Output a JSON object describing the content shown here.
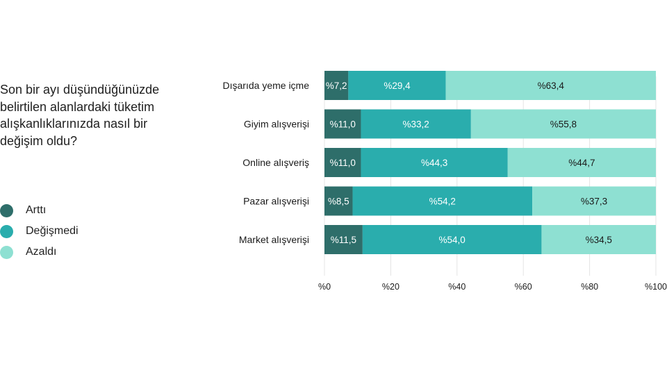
{
  "question": "Son bir ayı düşündüğünüzde belirtilen alanlardaki tüketim alışkanlıklarınızda nasıl bir değişim oldu?",
  "legend": [
    {
      "label": "Arttı",
      "color": "#2e6e6a"
    },
    {
      "label": "Değişmedi",
      "color": "#2aadad"
    },
    {
      "label": "Azaldı",
      "color": "#8ee0d2"
    }
  ],
  "chart_data": {
    "type": "bar",
    "orientation": "horizontal",
    "stacked": true,
    "categories": [
      "Dışarıda yeme içme",
      "Giyim alışverişi",
      "Online alışveriş",
      "Pazar alışverişi",
      "Market alışverişi"
    ],
    "series": [
      {
        "name": "Arttı",
        "color": "#2e6e6a",
        "values": [
          7.2,
          11.0,
          11.0,
          8.5,
          11.5
        ],
        "labels": [
          "%7,2",
          "%11,0",
          "%11,0",
          "%8,5",
          "%11,5"
        ]
      },
      {
        "name": "Değişmedi",
        "color": "#2aadad",
        "values": [
          29.4,
          33.2,
          44.3,
          54.2,
          54.0
        ],
        "labels": [
          "%29,4",
          "%33,2",
          "%44,3",
          "%54,2",
          "%54,0"
        ]
      },
      {
        "name": "Azaldı",
        "color": "#8ee0d2",
        "values": [
          63.4,
          55.8,
          44.7,
          37.3,
          34.5
        ],
        "labels": [
          "%63,4",
          "%55,8",
          "%44,7",
          "%37,3",
          "%34,5"
        ]
      }
    ],
    "xlim": [
      0,
      100
    ],
    "xticks": [
      0,
      20,
      40,
      60,
      80,
      100
    ],
    "xtick_labels": [
      "%0",
      "%20",
      "%40",
      "%60",
      "%80",
      "%100"
    ],
    "grid": true,
    "legend_position": "left"
  }
}
